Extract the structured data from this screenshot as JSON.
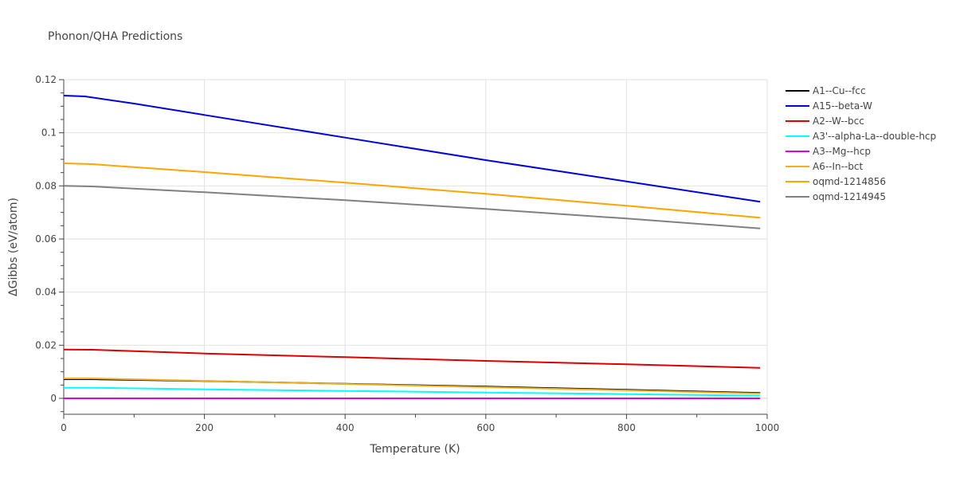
{
  "chart_data": {
    "type": "line",
    "title": "Phonon/QHA Predictions",
    "xlabel": "Temperature (K)",
    "ylabel": "ΔGibbs (eV/atom)",
    "xlim": [
      0,
      1000
    ],
    "ylim": [
      -0.006,
      0.12
    ],
    "x_ticks": [
      0,
      200,
      400,
      600,
      800,
      1000
    ],
    "x_tick_labels": [
      "0",
      "200",
      "400",
      "600",
      "800",
      "1000"
    ],
    "y_ticks": [
      0,
      0.02,
      0.04,
      0.06,
      0.08,
      0.1,
      0.12
    ],
    "y_tick_labels": [
      "0",
      "0.02",
      "0.04",
      "0.06",
      "0.08",
      "0.1",
      "0.12"
    ],
    "grid": true,
    "legend_position": "right",
    "series": [
      {
        "name": "A1--Cu--fcc",
        "color": "#000000",
        "x": [
          0,
          40,
          200,
          400,
          600,
          800,
          990
        ],
        "y": [
          0.0072,
          0.0072,
          0.0065,
          0.0055,
          0.0044,
          0.0032,
          0.002
        ]
      },
      {
        "name": "A15--beta-W",
        "color": "#0000dd",
        "x": [
          0,
          30,
          100,
          200,
          400,
          600,
          800,
          990
        ],
        "y": [
          0.114,
          0.1137,
          0.111,
          0.1067,
          0.0982,
          0.0897,
          0.0817,
          0.074
        ]
      },
      {
        "name": "A2--W--bcc",
        "color": "#dd0000",
        "x": [
          0,
          40,
          200,
          400,
          600,
          800,
          990
        ],
        "y": [
          0.0184,
          0.0183,
          0.0169,
          0.0155,
          0.0141,
          0.0128,
          0.0115
        ]
      },
      {
        "name": "A3'--alpha-La--double-hcp",
        "color": "#00ffff",
        "x": [
          0,
          40,
          200,
          400,
          600,
          800,
          990
        ],
        "y": [
          0.004,
          0.004,
          0.0034,
          0.0028,
          0.0022,
          0.0016,
          0.001
        ]
      },
      {
        "name": "A3--Mg--hcp",
        "color": "#dd00dd",
        "x": [
          0,
          200,
          400,
          600,
          800,
          990
        ],
        "y": [
          0.0,
          0.0,
          0.0,
          0.0,
          0.0,
          0.0
        ]
      },
      {
        "name": "A6--In--bct",
        "color": "#f0b020",
        "x": [
          0,
          40,
          200,
          400,
          600,
          800,
          990
        ],
        "y": [
          0.0075,
          0.0075,
          0.0066,
          0.0054,
          0.0042,
          0.003,
          0.0018
        ]
      },
      {
        "name": "oqmd-1214856",
        "color": "#ffa500",
        "x": [
          0,
          40,
          200,
          400,
          600,
          800,
          990
        ],
        "y": [
          0.0885,
          0.0882,
          0.0852,
          0.0812,
          0.077,
          0.0725,
          0.068
        ]
      },
      {
        "name": "oqmd-1214945",
        "color": "#808080",
        "x": [
          0,
          40,
          200,
          400,
          600,
          800,
          990
        ],
        "y": [
          0.08,
          0.0798,
          0.0776,
          0.0746,
          0.0713,
          0.0677,
          0.064
        ]
      }
    ]
  }
}
